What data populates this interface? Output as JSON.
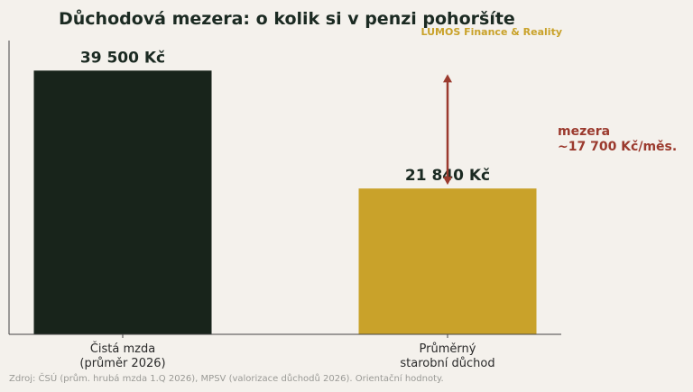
{
  "chart_data": {
    "type": "bar",
    "title": "Důchodová mezera: o kolik si v penzi pohoršíte",
    "brand": "LUMOS Finance & Reality",
    "categories": [
      [
        "Čistá mzda",
        "(průměr 2026)"
      ],
      [
        "Průměrný",
        "starobní důchod"
      ]
    ],
    "values": [
      39500,
      21840
    ],
    "value_labels": [
      "39 500 Kč",
      "21 840 Kč"
    ],
    "colors": [
      "#18241b",
      "#c9a22a"
    ],
    "ylim": [
      0,
      44000
    ],
    "grid": false,
    "annotation": {
      "lines": [
        "mezera",
        "~17 700 Kč/měs."
      ],
      "from_value": 21840,
      "to_value": 39500,
      "color": "#9b3a2e"
    },
    "source": "Zdroj: ČSÚ (prům. hrubá mzda 1.Q 2026), MPSV (valorizace důchodů 2026). Orientační hodnoty."
  }
}
